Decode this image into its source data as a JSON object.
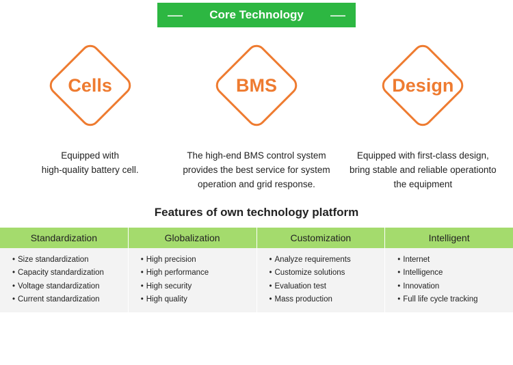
{
  "header": {
    "title": "Core Technology",
    "bg_color": "#2db742",
    "text_color": "#ffffff"
  },
  "tech": {
    "accent_color": "#ee7b30",
    "items": [
      {
        "label": "Cells",
        "desc": "Equipped with\nhigh-quality battery cell."
      },
      {
        "label": "BMS",
        "desc": "The high-end BMS control system provides the best service for system operation and grid response."
      },
      {
        "label": "Design",
        "desc": "Equipped with first-class design, bring stable and reliable operationto the equipment"
      }
    ]
  },
  "features": {
    "title": "Features of own technology platform",
    "head_bg": "#a4db6d",
    "body_bg": "#f3f3f3",
    "columns": [
      {
        "head": "Standardization",
        "items": [
          "Size standardization",
          "Capacity standardization",
          "Voltage standardization",
          "Current standardization"
        ]
      },
      {
        "head": "Globalization",
        "items": [
          "High precision",
          "High performance",
          "High security",
          "High quality"
        ]
      },
      {
        "head": "Customization",
        "items": [
          "Analyze requirements",
          "Customize  solutions",
          "Evaluation test",
          "Mass production"
        ]
      },
      {
        "head": "Intelligent",
        "items": [
          "Internet",
          "Intelligence",
          "Innovation",
          "Full life cycle tracking"
        ]
      }
    ]
  }
}
